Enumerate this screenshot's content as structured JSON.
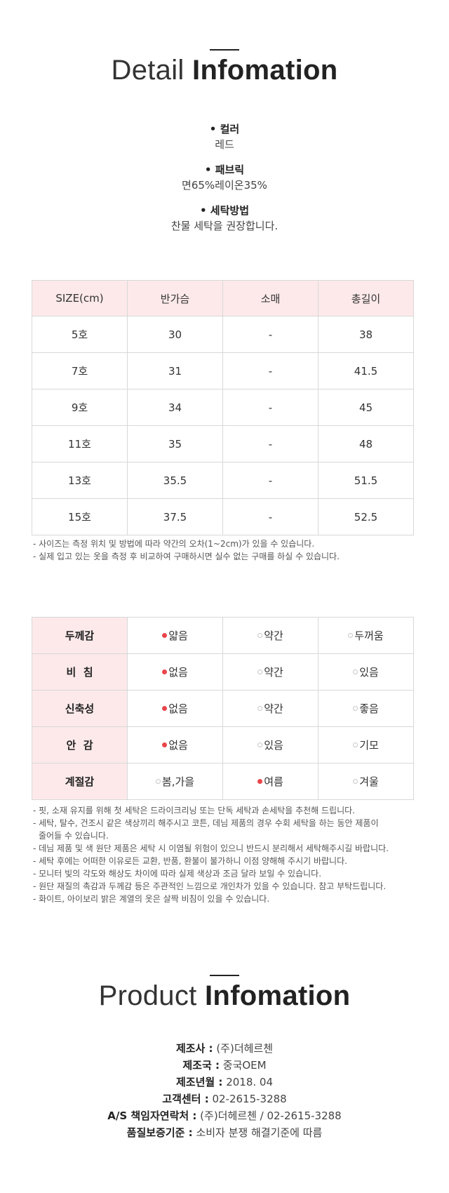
{
  "detail": {
    "title_light": "Detail",
    "title_bold": "Infomation",
    "items": [
      {
        "label": "• 컬러",
        "value": "레드"
      },
      {
        "label": "• 패브릭",
        "value": "면65%레이온35%"
      },
      {
        "label": "• 세탁방법",
        "value": "찬물 세탁을 권장합니다."
      }
    ]
  },
  "size_table": {
    "headers": [
      "SIZE(cm)",
      "반가슴",
      "소매",
      "총길이"
    ],
    "rows": [
      [
        "5호",
        "30",
        "-",
        "38"
      ],
      [
        "7호",
        "31",
        "-",
        "41.5"
      ],
      [
        "9호",
        "34",
        "-",
        "45"
      ],
      [
        "11호",
        "35",
        "-",
        "48"
      ],
      [
        "13호",
        "35.5",
        "-",
        "51.5"
      ],
      [
        "15호",
        "37.5",
        "-",
        "52.5"
      ]
    ]
  },
  "size_notes": [
    "- 사이즈는 측정 위치 및 방법에 따라 약간의 오차(1~2cm)가 있을 수 있습니다.",
    "- 실제 입고 있는 옷을 측정 후 비교하여 구매하시면 실수 없는 구매를 하실 수 있습니다."
  ],
  "feel_table": {
    "rows": [
      {
        "head": "두께감",
        "options": [
          "얇음",
          "약간",
          "두꺼움"
        ],
        "selected": 0
      },
      {
        "head": "비  침",
        "options": [
          "없음",
          "약간",
          "있음"
        ],
        "selected": 0
      },
      {
        "head": "신축성",
        "options": [
          "없음",
          "약간",
          "좋음"
        ],
        "selected": 0
      },
      {
        "head": "안  감",
        "options": [
          "없음",
          "있음",
          "기모"
        ],
        "selected": 0
      },
      {
        "head": "계절감",
        "options": [
          "봄,가을",
          "여름",
          "겨울"
        ],
        "selected": 1
      }
    ],
    "selected_color": "#e9454b"
  },
  "care_notes": [
    "- 핏, 소재 유지를 위해 첫 세탁은 드라이크리닝 또는 단독 세탁과 손세탁을 추천해 드립니다.",
    "- 세탁, 탈수, 건조시 같은 색상끼리 해주시고 코튼, 데님 제품의 경우 수회 세탁을 하는 동안 제품이",
    "줄어들 수 있습니다.",
    "- 데님 제품 및 색 원단 제품은 세탁 시 이염될 위험이 있으니 반드시 분리해서 세탁해주시길 바랍니다.",
    "- 세탁 후에는 어떠한 이유로든 교환, 반품, 환불이 불가하니 이점 양해해 주시기 바랍니다.",
    "- 모니터 빛의 각도와 해상도 차이에 따라 실제 색상과 조금 달라 보일 수 있습니다.",
    "- 원단 재질의 촉감과 두께감 등은 주관적인 느낌으로 개인차가 있을 수 있습니다. 참고 부탁드립니다.",
    "- 화이트, 아이보리 밝은 계열의 옷은 살짝 비침이 있을 수 있습니다."
  ],
  "product": {
    "title_light": "Product",
    "title_bold": "Infomation",
    "lines": [
      {
        "key": "제조사 :",
        "value": " (주)더헤르첸"
      },
      {
        "key": "제조국 :",
        "value": " 중국OEM"
      },
      {
        "key": "제조년월 :",
        "value": " 2018. 04"
      },
      {
        "key": "고객센터 :",
        "value": " 02-2615-3288"
      },
      {
        "key": "A/S 책임자연락처 :",
        "value": " (주)더헤르첸 / 02-2615-3288"
      },
      {
        "key": "품질보증기준 :",
        "value": " 소비자 분쟁 해결기준에 따름"
      }
    ]
  }
}
